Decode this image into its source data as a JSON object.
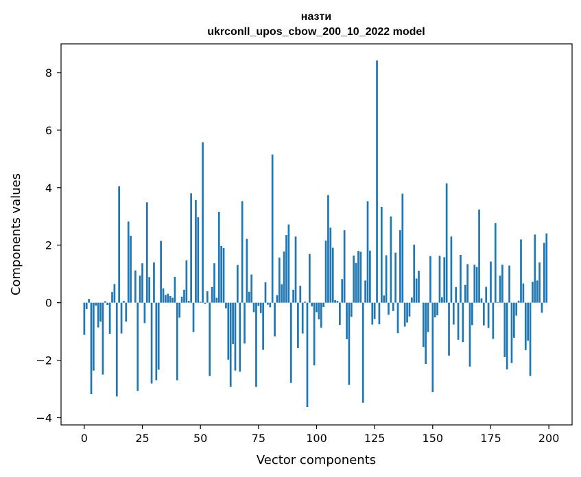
{
  "chart_data": {
    "type": "bar",
    "title": "назти",
    "subtitle": "ukrconll_upos_cbow_200_10_2022 model",
    "xlabel": "Vector components",
    "ylabel": "Components values",
    "xlim": [
      -10,
      210
    ],
    "ylim": [
      -4.25,
      9.0
    ],
    "xticks": [
      0,
      25,
      50,
      75,
      100,
      125,
      150,
      175,
      200
    ],
    "yticks": [
      -4,
      -2,
      0,
      2,
      4,
      6,
      8
    ],
    "ytick_labels": [
      "−4",
      "−2",
      "0",
      "2",
      "4",
      "6",
      "8"
    ],
    "grid": false,
    "bar_color": "#1f77b4",
    "series": [
      {
        "values": [
          -1.12,
          -0.22,
          0.13,
          -3.18,
          -2.36,
          -0.1,
          -0.86,
          -0.66,
          -2.5,
          0.05,
          -0.08,
          -1.08,
          0.37,
          0.65,
          -3.26,
          4.05,
          -1.07,
          0.06,
          -0.66,
          2.82,
          2.33,
          0.0,
          1.12,
          -3.07,
          0.94,
          1.37,
          -0.71,
          3.49,
          0.89,
          -2.81,
          1.4,
          -2.7,
          -2.33,
          2.15,
          0.5,
          0.27,
          0.31,
          0.23,
          0.17,
          0.9,
          -2.7,
          -0.52,
          0.21,
          0.45,
          1.47,
          0.06,
          3.8,
          -1.02,
          3.57,
          2.97,
          0.03,
          5.58,
          -0.04,
          0.4,
          -2.55,
          0.54,
          1.37,
          0.17,
          3.16,
          1.97,
          1.9,
          -0.2,
          -1.98,
          -2.93,
          -1.44,
          -2.36,
          1.31,
          -2.4,
          3.53,
          -1.42,
          2.22,
          0.38,
          0.98,
          -0.33,
          -2.93,
          -0.11,
          -0.36,
          -1.64,
          0.71,
          -0.07,
          -0.16,
          5.15,
          -1.17,
          0.26,
          1.57,
          0.64,
          1.78,
          2.35,
          2.72,
          -2.79,
          0.45,
          2.3,
          -1.58,
          0.59,
          -1.07,
          0.04,
          -3.63,
          1.69,
          -0.13,
          -2.18,
          -0.33,
          -0.58,
          -0.87,
          -0.15,
          2.16,
          3.74,
          2.61,
          1.91,
          0.09,
          0.06,
          -0.77,
          0.82,
          2.52,
          -1.27,
          -2.86,
          -0.49,
          1.64,
          1.38,
          1.8,
          1.77,
          -3.48,
          0.77,
          3.53,
          1.81,
          -0.76,
          -0.57,
          8.42,
          -0.75,
          3.33,
          0.25,
          1.65,
          -0.42,
          3.0,
          -0.29,
          1.74,
          -1.06,
          2.52,
          3.79,
          -0.83,
          -0.69,
          -0.48,
          0.18,
          2.02,
          0.84,
          1.11,
          0.0,
          -1.54,
          -2.13,
          -1.02,
          1.62,
          -3.11,
          -0.51,
          -0.44,
          1.63,
          0.19,
          1.58,
          4.15,
          -1.84,
          2.3,
          -0.76,
          0.54,
          -1.29,
          1.66,
          -1.37,
          0.62,
          1.34,
          -2.22,
          -0.78,
          1.32,
          1.24,
          3.24,
          0.15,
          -0.79,
          0.55,
          -0.88,
          1.43,
          -1.26,
          2.77,
          0.02,
          0.94,
          1.32,
          -1.89,
          -2.32,
          1.29,
          -2.1,
          -1.22,
          -0.45,
          0.07,
          2.2,
          0.67,
          -1.65,
          -1.32,
          -2.55,
          0.73,
          2.37,
          0.77,
          1.4,
          -0.35,
          2.08,
          2.41
        ]
      }
    ]
  }
}
